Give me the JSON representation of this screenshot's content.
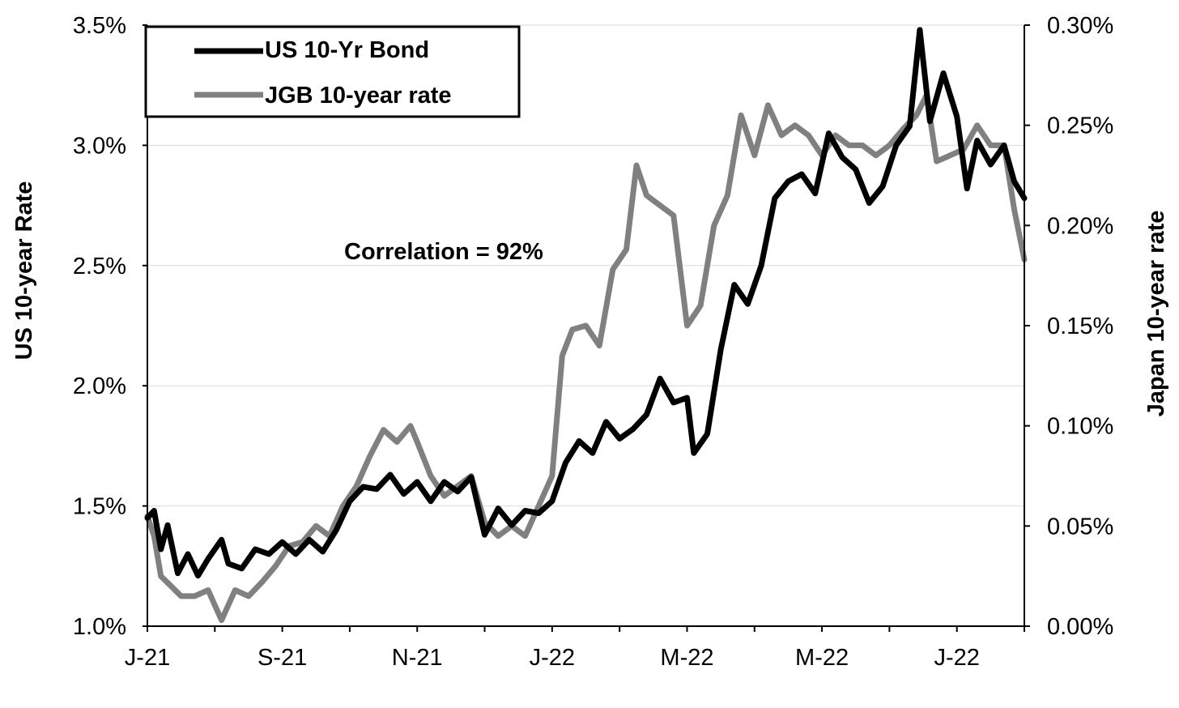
{
  "chart_data": {
    "type": "line",
    "y_left_label": "US 10-year Rate",
    "y_right_label": "Japan 10-year rate",
    "y_left_range": [
      1.0,
      3.5
    ],
    "y_left_ticks": [
      "1.0%",
      "1.5%",
      "2.0%",
      "2.5%",
      "3.0%",
      "3.5%"
    ],
    "y_left_tick_values": [
      1.0,
      1.5,
      2.0,
      2.5,
      3.0,
      3.5
    ],
    "y_right_range": [
      0.0,
      0.3
    ],
    "y_right_ticks": [
      "0.00%",
      "0.05%",
      "0.10%",
      "0.15%",
      "0.20%",
      "0.25%",
      "0.30%"
    ],
    "y_right_tick_values": [
      0.0,
      0.05,
      0.1,
      0.15,
      0.2,
      0.25,
      0.3
    ],
    "x_range": [
      0,
      13
    ],
    "x_ticks": [
      "J-21",
      "S-21",
      "N-21",
      "J-22",
      "M-22",
      "M-22",
      "J-22"
    ],
    "x_tick_values": [
      0,
      2,
      4,
      6,
      8,
      10,
      12
    ],
    "annotation": "Correlation = 92%",
    "legend_position": "top-left",
    "grid": "horizontal",
    "series": [
      {
        "name": "US 10-Yr Bond",
        "axis": "left",
        "color": "#000000",
        "points": [
          [
            0.0,
            1.45
          ],
          [
            0.1,
            1.48
          ],
          [
            0.2,
            1.32
          ],
          [
            0.3,
            1.42
          ],
          [
            0.45,
            1.22
          ],
          [
            0.6,
            1.3
          ],
          [
            0.75,
            1.21
          ],
          [
            0.9,
            1.28
          ],
          [
            1.1,
            1.36
          ],
          [
            1.2,
            1.26
          ],
          [
            1.4,
            1.24
          ],
          [
            1.6,
            1.32
          ],
          [
            1.8,
            1.3
          ],
          [
            2.0,
            1.35
          ],
          [
            2.2,
            1.3
          ],
          [
            2.4,
            1.36
          ],
          [
            2.6,
            1.31
          ],
          [
            2.8,
            1.4
          ],
          [
            3.0,
            1.52
          ],
          [
            3.2,
            1.58
          ],
          [
            3.4,
            1.57
          ],
          [
            3.6,
            1.63
          ],
          [
            3.8,
            1.55
          ],
          [
            4.0,
            1.6
          ],
          [
            4.2,
            1.52
          ],
          [
            4.4,
            1.6
          ],
          [
            4.6,
            1.56
          ],
          [
            4.8,
            1.62
          ],
          [
            5.0,
            1.38
          ],
          [
            5.2,
            1.49
          ],
          [
            5.4,
            1.42
          ],
          [
            5.6,
            1.48
          ],
          [
            5.8,
            1.47
          ],
          [
            6.0,
            1.52
          ],
          [
            6.2,
            1.68
          ],
          [
            6.4,
            1.77
          ],
          [
            6.6,
            1.72
          ],
          [
            6.8,
            1.85
          ],
          [
            7.0,
            1.78
          ],
          [
            7.2,
            1.82
          ],
          [
            7.4,
            1.88
          ],
          [
            7.6,
            2.03
          ],
          [
            7.8,
            1.93
          ],
          [
            8.0,
            1.95
          ],
          [
            8.1,
            1.72
          ],
          [
            8.3,
            1.8
          ],
          [
            8.5,
            2.15
          ],
          [
            8.7,
            2.42
          ],
          [
            8.9,
            2.34
          ],
          [
            9.1,
            2.5
          ],
          [
            9.3,
            2.78
          ],
          [
            9.5,
            2.85
          ],
          [
            9.7,
            2.88
          ],
          [
            9.9,
            2.8
          ],
          [
            10.1,
            3.05
          ],
          [
            10.3,
            2.95
          ],
          [
            10.5,
            2.9
          ],
          [
            10.7,
            2.76
          ],
          [
            10.9,
            2.83
          ],
          [
            11.1,
            3.0
          ],
          [
            11.3,
            3.08
          ],
          [
            11.45,
            3.48
          ],
          [
            11.6,
            3.1
          ],
          [
            11.8,
            3.3
          ],
          [
            12.0,
            3.12
          ],
          [
            12.15,
            2.82
          ],
          [
            12.3,
            3.02
          ],
          [
            12.5,
            2.92
          ],
          [
            12.7,
            3.0
          ],
          [
            12.85,
            2.85
          ],
          [
            13.0,
            2.78
          ]
        ]
      },
      {
        "name": "JGB 10-year rate",
        "axis": "right",
        "color": "#808080",
        "points": [
          [
            0.0,
            0.055
          ],
          [
            0.1,
            0.045
          ],
          [
            0.2,
            0.025
          ],
          [
            0.35,
            0.02
          ],
          [
            0.5,
            0.015
          ],
          [
            0.7,
            0.015
          ],
          [
            0.9,
            0.018
          ],
          [
            1.1,
            0.003
          ],
          [
            1.3,
            0.018
          ],
          [
            1.5,
            0.015
          ],
          [
            1.7,
            0.022
          ],
          [
            1.9,
            0.03
          ],
          [
            2.1,
            0.04
          ],
          [
            2.3,
            0.042
          ],
          [
            2.5,
            0.05
          ],
          [
            2.7,
            0.045
          ],
          [
            2.9,
            0.06
          ],
          [
            3.1,
            0.07
          ],
          [
            3.3,
            0.085
          ],
          [
            3.5,
            0.098
          ],
          [
            3.7,
            0.092
          ],
          [
            3.9,
            0.1
          ],
          [
            4.0,
            0.092
          ],
          [
            4.2,
            0.075
          ],
          [
            4.4,
            0.065
          ],
          [
            4.6,
            0.07
          ],
          [
            4.8,
            0.075
          ],
          [
            5.0,
            0.052
          ],
          [
            5.2,
            0.045
          ],
          [
            5.4,
            0.05
          ],
          [
            5.6,
            0.045
          ],
          [
            5.8,
            0.06
          ],
          [
            6.0,
            0.075
          ],
          [
            6.15,
            0.135
          ],
          [
            6.3,
            0.148
          ],
          [
            6.5,
            0.15
          ],
          [
            6.7,
            0.14
          ],
          [
            6.9,
            0.178
          ],
          [
            7.1,
            0.188
          ],
          [
            7.25,
            0.23
          ],
          [
            7.4,
            0.215
          ],
          [
            7.6,
            0.21
          ],
          [
            7.8,
            0.205
          ],
          [
            8.0,
            0.15
          ],
          [
            8.2,
            0.16
          ],
          [
            8.4,
            0.2
          ],
          [
            8.6,
            0.215
          ],
          [
            8.8,
            0.255
          ],
          [
            9.0,
            0.235
          ],
          [
            9.2,
            0.26
          ],
          [
            9.4,
            0.245
          ],
          [
            9.6,
            0.25
          ],
          [
            9.8,
            0.245
          ],
          [
            10.0,
            0.235
          ],
          [
            10.2,
            0.245
          ],
          [
            10.4,
            0.24
          ],
          [
            10.6,
            0.24
          ],
          [
            10.8,
            0.235
          ],
          [
            11.0,
            0.24
          ],
          [
            11.2,
            0.248
          ],
          [
            11.4,
            0.255
          ],
          [
            11.55,
            0.265
          ],
          [
            11.7,
            0.232
          ],
          [
            11.9,
            0.235
          ],
          [
            12.1,
            0.238
          ],
          [
            12.3,
            0.25
          ],
          [
            12.5,
            0.24
          ],
          [
            12.7,
            0.24
          ],
          [
            12.85,
            0.208
          ],
          [
            13.0,
            0.183
          ]
        ]
      }
    ]
  }
}
